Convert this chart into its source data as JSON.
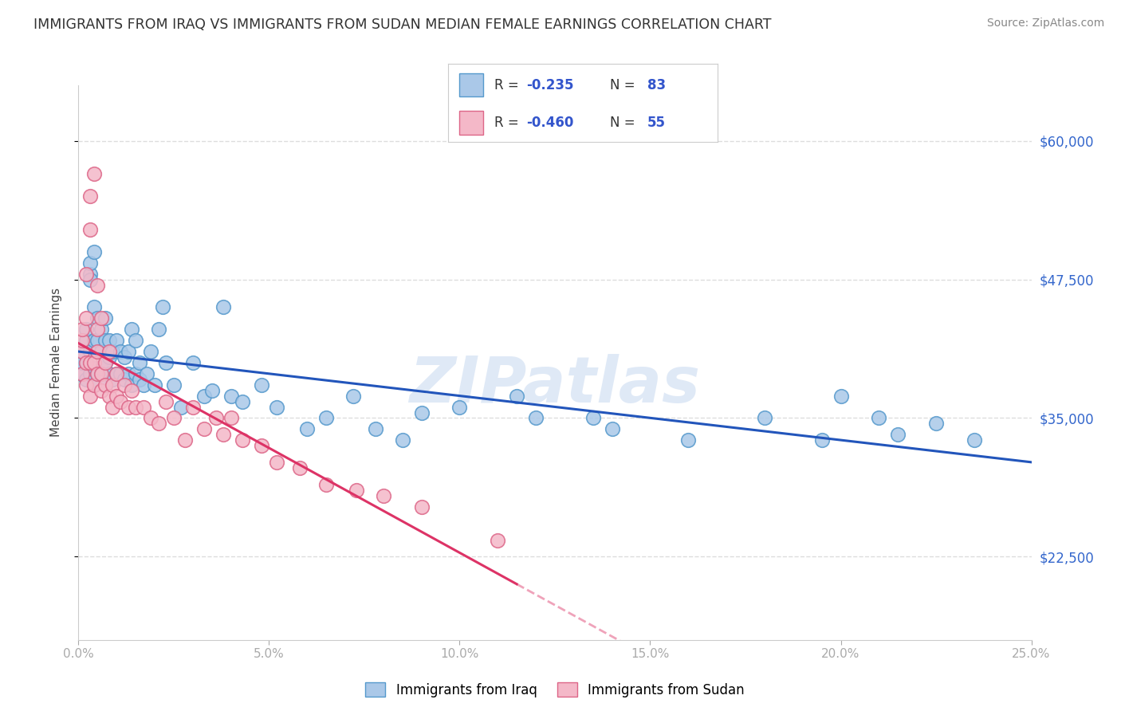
{
  "title": "IMMIGRANTS FROM IRAQ VS IMMIGRANTS FROM SUDAN MEDIAN FEMALE EARNINGS CORRELATION CHART",
  "source": "Source: ZipAtlas.com",
  "ylabel": "Median Female Earnings",
  "xlim": [
    0.0,
    0.25
  ],
  "ylim": [
    15000,
    65000
  ],
  "xtick_labels": [
    "0.0%",
    "5.0%",
    "10.0%",
    "15.0%",
    "20.0%",
    "25.0%"
  ],
  "xtick_values": [
    0.0,
    0.05,
    0.1,
    0.15,
    0.2,
    0.25
  ],
  "ytick_labels": [
    "$22,500",
    "$35,000",
    "$47,500",
    "$60,000"
  ],
  "ytick_values": [
    22500,
    35000,
    47500,
    60000
  ],
  "iraq_color": "#aac8e8",
  "iraq_edge_color": "#5599cc",
  "sudan_color": "#f4b8c8",
  "sudan_edge_color": "#dd6688",
  "iraq_line_color": "#2255bb",
  "sudan_line_color": "#dd3366",
  "iraq_R": -0.235,
  "iraq_N": 83,
  "sudan_R": -0.46,
  "sudan_N": 55,
  "watermark": "ZIPatlas",
  "background_color": "#ffffff",
  "grid_color": "#dddddd",
  "iraq_x": [
    0.001,
    0.001,
    0.001,
    0.002,
    0.002,
    0.002,
    0.002,
    0.003,
    0.003,
    0.003,
    0.003,
    0.003,
    0.004,
    0.004,
    0.004,
    0.004,
    0.004,
    0.005,
    0.005,
    0.005,
    0.005,
    0.006,
    0.006,
    0.006,
    0.007,
    0.007,
    0.007,
    0.007,
    0.008,
    0.008,
    0.008,
    0.009,
    0.009,
    0.01,
    0.01,
    0.011,
    0.011,
    0.012,
    0.012,
    0.013,
    0.013,
    0.014,
    0.014,
    0.015,
    0.015,
    0.016,
    0.016,
    0.017,
    0.018,
    0.019,
    0.02,
    0.021,
    0.022,
    0.023,
    0.025,
    0.027,
    0.03,
    0.033,
    0.035,
    0.038,
    0.04,
    0.043,
    0.048,
    0.052,
    0.06,
    0.065,
    0.072,
    0.078,
    0.085,
    0.09,
    0.1,
    0.115,
    0.12,
    0.135,
    0.14,
    0.16,
    0.18,
    0.195,
    0.2,
    0.21,
    0.215,
    0.225,
    0.235
  ],
  "iraq_y": [
    39000,
    40000,
    41000,
    38500,
    40000,
    42000,
    43000,
    39000,
    41000,
    48000,
    49000,
    47500,
    38000,
    39500,
    42000,
    45000,
    50000,
    39000,
    41000,
    42000,
    44000,
    39500,
    41000,
    43000,
    38000,
    40000,
    42000,
    44000,
    39000,
    40500,
    42000,
    38500,
    41000,
    39000,
    42000,
    39000,
    41000,
    38500,
    40500,
    39000,
    41000,
    38000,
    43000,
    39000,
    42000,
    38500,
    40000,
    38000,
    39000,
    41000,
    38000,
    43000,
    45000,
    40000,
    38000,
    36000,
    40000,
    37000,
    37500,
    45000,
    37000,
    36500,
    38000,
    36000,
    34000,
    35000,
    37000,
    34000,
    33000,
    35500,
    36000,
    37000,
    35000,
    35000,
    34000,
    33000,
    35000,
    33000,
    37000,
    35000,
    33500,
    34500,
    33000
  ],
  "sudan_x": [
    0.001,
    0.001,
    0.001,
    0.001,
    0.002,
    0.002,
    0.002,
    0.002,
    0.003,
    0.003,
    0.003,
    0.003,
    0.004,
    0.004,
    0.004,
    0.005,
    0.005,
    0.005,
    0.005,
    0.006,
    0.006,
    0.006,
    0.007,
    0.007,
    0.008,
    0.008,
    0.009,
    0.009,
    0.01,
    0.01,
    0.011,
    0.012,
    0.013,
    0.014,
    0.015,
    0.017,
    0.019,
    0.021,
    0.023,
    0.025,
    0.028,
    0.03,
    0.033,
    0.036,
    0.038,
    0.04,
    0.043,
    0.048,
    0.052,
    0.058,
    0.065,
    0.073,
    0.08,
    0.09,
    0.11
  ],
  "sudan_y": [
    39000,
    41000,
    42000,
    43000,
    38000,
    40000,
    44000,
    48000,
    37000,
    40000,
    52000,
    55000,
    38000,
    40000,
    57000,
    39000,
    41000,
    43000,
    47000,
    37500,
    39000,
    44000,
    38000,
    40000,
    37000,
    41000,
    36000,
    38000,
    37000,
    39000,
    36500,
    38000,
    36000,
    37500,
    36000,
    36000,
    35000,
    34500,
    36500,
    35000,
    33000,
    36000,
    34000,
    35000,
    33500,
    35000,
    33000,
    32500,
    31000,
    30500,
    29000,
    28500,
    28000,
    27000,
    24000
  ]
}
